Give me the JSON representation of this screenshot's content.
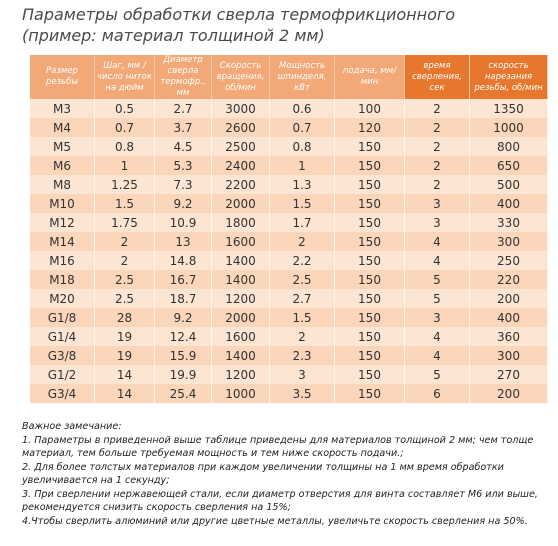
{
  "header": {
    "title": "Параметры обработки сверла термофрикционного",
    "subtitle": "(пример: материал толщиной 2 мм)"
  },
  "table": {
    "header": [
      "Размер резьбы",
      "Шаг, мм / число ниток на дюйм",
      "Диаметр сверла термофр., мм",
      "Скорость вращения, об/мин",
      "Мощность шпинделя, кВт",
      "подача, мм/мин",
      "время сверления, сек",
      "скорость нарезания резьбы, об/мин"
    ],
    "rows": [
      [
        "M3",
        "0.5",
        "2.7",
        "3000",
        "0.6",
        "100",
        "2",
        "1350"
      ],
      [
        "M4",
        "0.7",
        "3.7",
        "2600",
        "0.7",
        "120",
        "2",
        "1000"
      ],
      [
        "M5",
        "0.8",
        "4.5",
        "2500",
        "0.8",
        "150",
        "2",
        "800"
      ],
      [
        "M6",
        "1",
        "5.3",
        "2400",
        "1",
        "150",
        "2",
        "650"
      ],
      [
        "M8",
        "1.25",
        "7.3",
        "2200",
        "1.3",
        "150",
        "2",
        "500"
      ],
      [
        "M10",
        "1.5",
        "9.2",
        "2000",
        "1.5",
        "150",
        "3",
        "400"
      ],
      [
        "M12",
        "1.75",
        "10.9",
        "1800",
        "1.7",
        "150",
        "3",
        "330"
      ],
      [
        "M14",
        "2",
        "13",
        "1600",
        "2",
        "150",
        "4",
        "300"
      ],
      [
        "M16",
        "2",
        "14.8",
        "1400",
        "2.2",
        "150",
        "4",
        "250"
      ],
      [
        "M18",
        "2.5",
        "16.7",
        "1400",
        "2.5",
        "150",
        "5",
        "220"
      ],
      [
        "M20",
        "2.5",
        "18.7",
        "1200",
        "2.7",
        "150",
        "5",
        "200"
      ],
      [
        "G1/8",
        "28",
        "9.2",
        "2000",
        "1.5",
        "150",
        "3",
        "400"
      ],
      [
        "G1/4",
        "19",
        "12.4",
        "1600",
        "2",
        "150",
        "4",
        "360"
      ],
      [
        "G3/8",
        "19",
        "15.9",
        "1400",
        "2.3",
        "150",
        "4",
        "300"
      ],
      [
        "G1/2",
        "14",
        "19.9",
        "1200",
        "3",
        "150",
        "5",
        "270"
      ],
      [
        "G3/4",
        "14",
        "25.4",
        "1000",
        "3.5",
        "150",
        "6",
        "200"
      ]
    ]
  },
  "notes": {
    "heading": "Важное замечание:",
    "items": [
      "1. Параметры в приведенной выше таблице приведены для материалов толщиной 2 мм; чем толще материал, тем больше требуемая мощность и тем ниже скорость подачи.;",
      "2. Для более толстых материалов при каждом увеличении толщины на 1 мм время обработки увеличивается на 1 секунду;",
      "3. При сверлении нержавеющей стали, если диаметр отверстия для винта составляет М6 или выше, рекомендуется снизить скорость сверления на 15%;",
      "4.Чтобы сверлить алюминий или другие цветные металлы, увеличьте скорость сверления на 50%."
    ]
  }
}
